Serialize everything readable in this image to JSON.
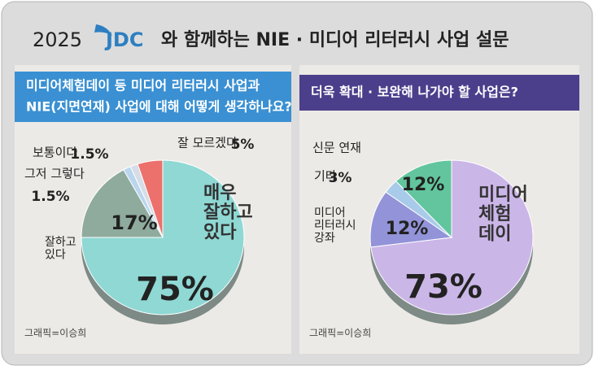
{
  "header": {
    "year": "2025",
    "brand": "JDC",
    "title": "와 함께하는 NIE · 미디어 리터러시 사업 설문"
  },
  "chart_data": [
    {
      "type": "pie",
      "title": [
        "미디어체험데이 등 미디어 리터러시 사업과",
        "NIE(지면연재) 사업에 대해 어떻게 생각하나요?"
      ],
      "categories": [
        "매우\n잘하고\n있다",
        "잘하고\n있다",
        "그저 그렇다",
        "보통이다",
        "잘 모르겠다"
      ],
      "values": [
        75,
        17,
        1.5,
        1.5,
        5
      ],
      "value_labels": [
        "75%",
        "17%",
        "1.5%",
        "1.5%",
        "5%"
      ],
      "colors": [
        "#8fd8d4",
        "#8fab9e",
        "#b9d6ee",
        "#d6dde6",
        "#ec716c"
      ],
      "credit": "그래픽=이승희"
    },
    {
      "type": "pie",
      "title": [
        "더욱 확대 · 보완해 나가야 할 사업은?"
      ],
      "categories": [
        "미디어\n체험\n데이",
        "미디어\n리터러시\n강좌",
        "기타",
        "신문 연재"
      ],
      "values": [
        73,
        12,
        3,
        12
      ],
      "value_labels": [
        "73%",
        "12%",
        "3%",
        "12%"
      ],
      "colors": [
        "#cbb6e8",
        "#9293d8",
        "#a9cbea",
        "#62c59d"
      ],
      "credit": "그래픽=이승희"
    }
  ]
}
